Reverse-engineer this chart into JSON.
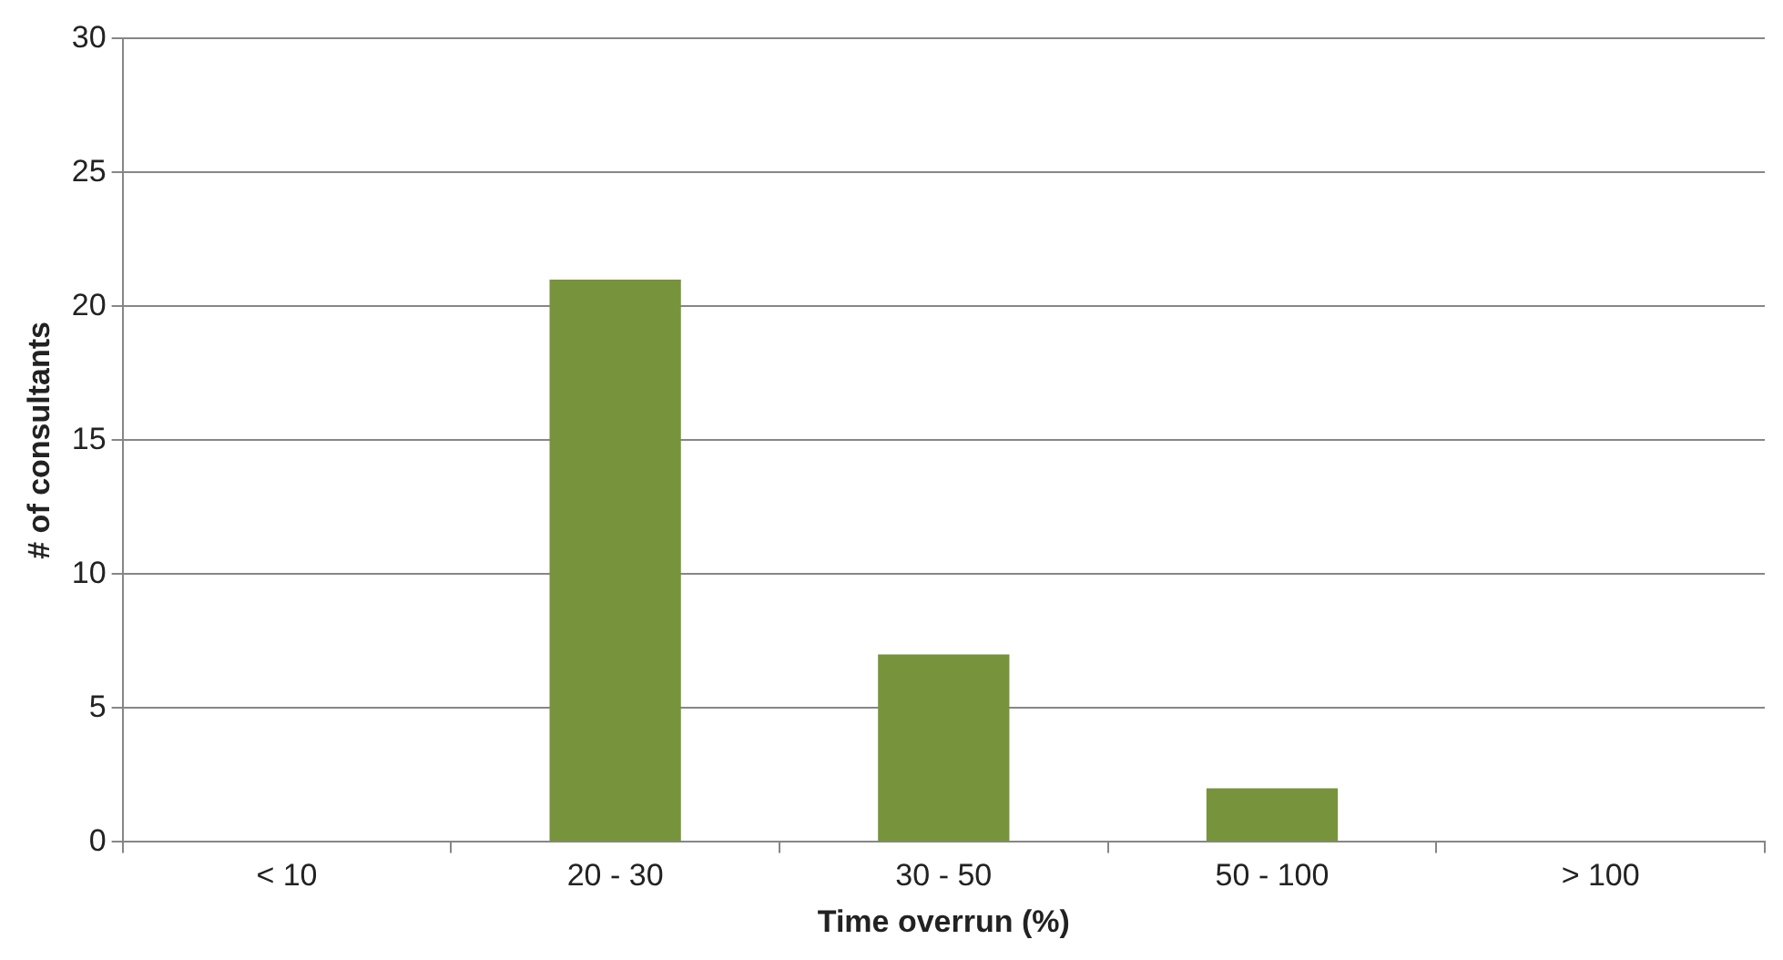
{
  "chart_data": {
    "type": "bar",
    "xlabel": "Time overrun (%)",
    "ylabel": "# of consultants",
    "categories": [
      "< 10",
      "20 - 30",
      "30 - 50",
      "50 - 100",
      "> 100"
    ],
    "values": [
      0,
      21,
      7,
      2,
      0
    ],
    "color": "#77933c",
    "ylim": [
      0,
      30
    ],
    "yticks": [
      0,
      5,
      10,
      15,
      20,
      25,
      30
    ],
    "grid": "y"
  }
}
